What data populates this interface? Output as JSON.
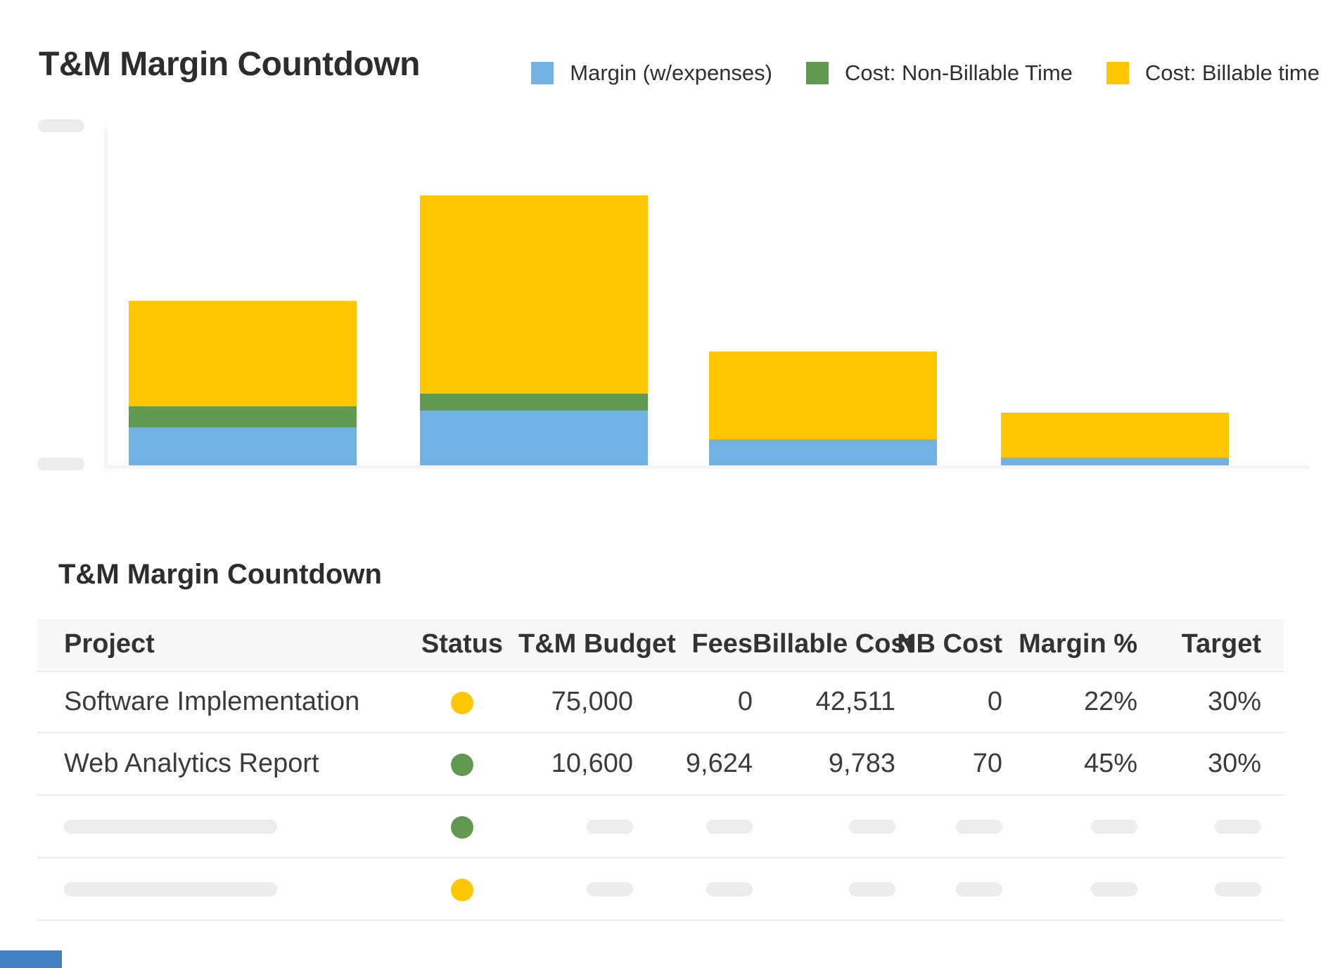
{
  "header": {
    "title": "T&M Margin Countdown"
  },
  "legend": {
    "items": [
      {
        "label": "Margin (w/expenses)",
        "color": "#72B2E3"
      },
      {
        "label": "Cost: Non-Billable Time",
        "color": "#629950"
      },
      {
        "label": "Cost: Billable time",
        "color": "#FFC700"
      }
    ]
  },
  "chart_data": {
    "type": "bar",
    "stacked": true,
    "orientation": "vertical",
    "categories": [
      "",
      "",
      "",
      ""
    ],
    "series": [
      {
        "name": "Margin (w/expenses)",
        "color": "#72B2E3",
        "values_pct_of_plot_height": [
          11.3,
          16.3,
          7.7,
          2.3
        ]
      },
      {
        "name": "Cost: Non-Billable Time",
        "color": "#629950",
        "values_pct_of_plot_height": [
          6.3,
          5.0,
          0,
          0
        ]
      },
      {
        "name": "Cost: Billable time",
        "color": "#FFC700",
        "values_pct_of_plot_height": [
          31.3,
          58.9,
          26.1,
          13.4
        ]
      }
    ],
    "legend_position": "top-right",
    "grid": false,
    "axis_tick_labels_visible": false,
    "note": "Axis tick labels are skeleton placeholder pills; series values estimated as percent of plot height."
  },
  "table": {
    "title": "T&M Margin Countdown",
    "columns": [
      {
        "label": "Project",
        "align": "left"
      },
      {
        "label": "Status",
        "align": "center"
      },
      {
        "label": "T&M Budget",
        "align": "right"
      },
      {
        "label": "Fees",
        "align": "right"
      },
      {
        "label": "Billable Cost",
        "align": "right"
      },
      {
        "label": "NB Cost",
        "align": "right"
      },
      {
        "label": "Margin %",
        "align": "right"
      },
      {
        "label": "Target",
        "align": "right"
      }
    ],
    "rows": [
      {
        "skeleton": false,
        "project": "Software Implementation",
        "status_color": "#FFC700",
        "cells": [
          "75,000",
          "0",
          "42,511",
          "0",
          "22%",
          "30%"
        ]
      },
      {
        "skeleton": false,
        "project": "Web Analytics Report",
        "status_color": "#629950",
        "cells": [
          "10,600",
          "9,624",
          "9,783",
          "70",
          "45%",
          "30%"
        ]
      },
      {
        "skeleton": true,
        "project": "",
        "status_color": "#629950",
        "cells": [
          "",
          "",
          "",
          "",
          "",
          ""
        ]
      },
      {
        "skeleton": true,
        "project": "",
        "status_color": "#FFC700",
        "cells": [
          "",
          "",
          "",
          "",
          "",
          ""
        ]
      }
    ]
  },
  "colors": {
    "margin_blue": "#72B2E3",
    "non_billable_green": "#629950",
    "billable_yellow": "#FFC700",
    "status_on_track_green": "#629950",
    "status_warning_yellow": "#FFC700",
    "skeleton_gray": "#ECECEC",
    "axis_gray": "#F5F5F5",
    "header_row_bg": "#F7F7F7",
    "bottom_bar_blue": "#4583C6"
  }
}
